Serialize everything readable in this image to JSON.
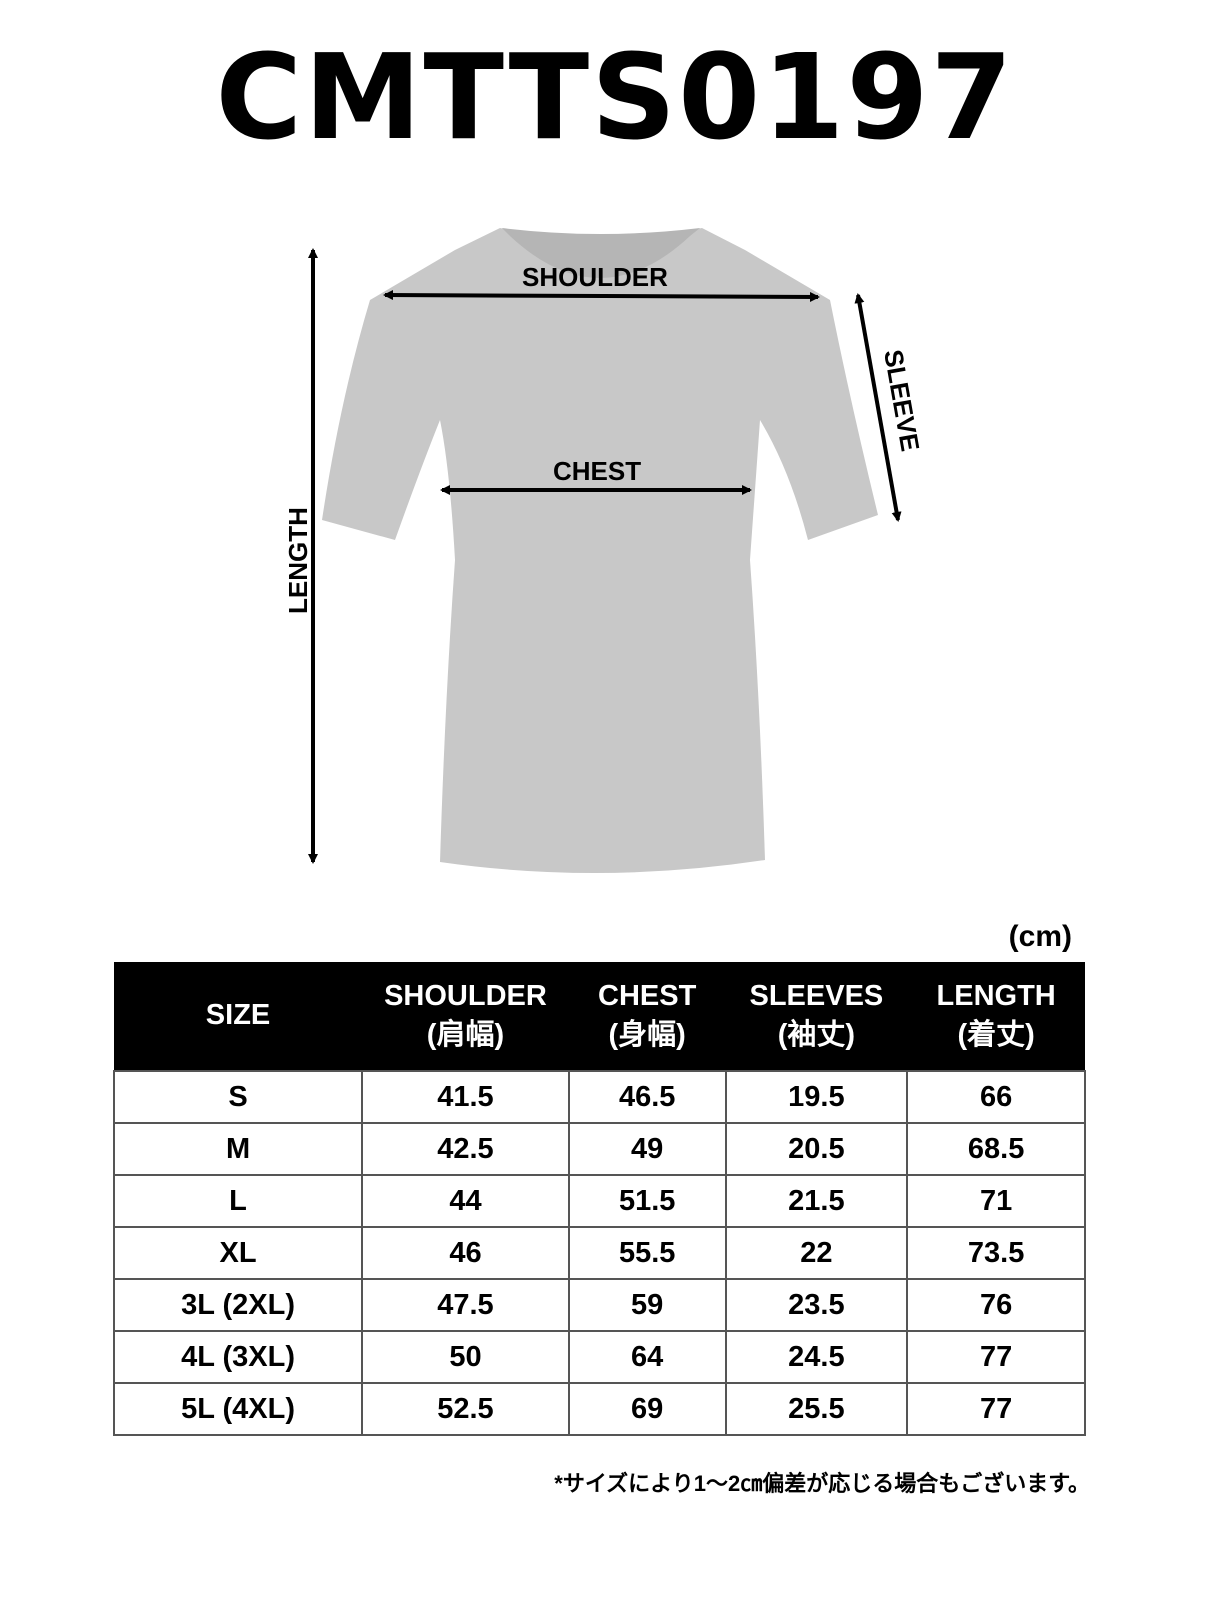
{
  "title": "CMTTS0197",
  "diagram": {
    "shirt_color": "#c8c8c8",
    "labels": {
      "shoulder": "SHOULDER",
      "chest": "CHEST",
      "sleeve": "SLEEVE",
      "length": "LENGTH"
    }
  },
  "unit": "(cm)",
  "table": {
    "headers": [
      {
        "en": "SIZE",
        "ja": ""
      },
      {
        "en": "SHOULDER",
        "ja": "(肩幅)"
      },
      {
        "en": "CHEST",
        "ja": "(身幅)"
      },
      {
        "en": "SLEEVES",
        "ja": "(袖丈)"
      },
      {
        "en": "LENGTH",
        "ja": "(着丈)"
      }
    ],
    "rows": [
      [
        "S",
        "41.5",
        "46.5",
        "19.5",
        "66"
      ],
      [
        "M",
        "42.5",
        "49",
        "20.5",
        "68.5"
      ],
      [
        "L",
        "44",
        "51.5",
        "21.5",
        "71"
      ],
      [
        "XL",
        "46",
        "55.5",
        "22",
        "73.5"
      ],
      [
        "3L (2XL)",
        "47.5",
        "59",
        "23.5",
        "76"
      ],
      [
        "4L (3XL)",
        "50",
        "64",
        "24.5",
        "77"
      ],
      [
        "5L (4XL)",
        "52.5",
        "69",
        "25.5",
        "77"
      ]
    ]
  },
  "note": "*サイズにより1～2㎝偏差が応じる場合もございます。"
}
